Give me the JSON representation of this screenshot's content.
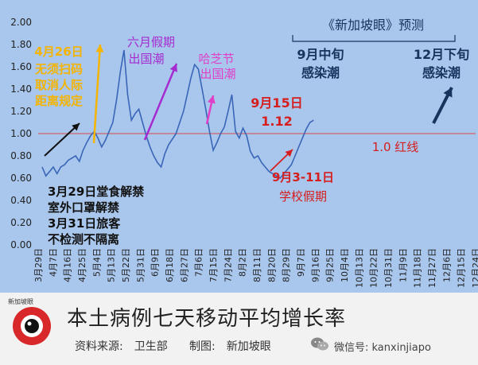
{
  "chart_data": {
    "type": "line",
    "title": "本土病例七天移动平均增长率",
    "x_ticks": [
      "3月29日",
      "4月7日",
      "4月16日",
      "4月25日",
      "5月4日",
      "5月13日",
      "5月22日",
      "5月31日",
      "6月9日",
      "6月18日",
      "6月27日",
      "7月6日",
      "7月15日",
      "7月24日",
      "8月2日",
      "8月11日",
      "8月20日",
      "8月29日",
      "9月7日",
      "9月16日",
      "9月25日",
      "10月4日",
      "10月13日",
      "10月22日",
      "10月31日",
      "11月9日",
      "11月18日",
      "11月27日",
      "12月6日",
      "12月15日",
      "12月24日"
    ],
    "y_ticks": [
      "0.00",
      "0.20",
      "0.40",
      "0.60",
      "0.80",
      "1.00",
      "1.20",
      "1.40",
      "1.60",
      "1.80",
      "2.00"
    ],
    "ylim": [
      0,
      2.0
    ],
    "series": [
      {
        "values": [
          0.7,
          0.62,
          0.66,
          0.7,
          0.64,
          0.7,
          0.72,
          0.76,
          0.78,
          0.8,
          0.75,
          0.85,
          0.92,
          0.98,
          1.02,
          0.96,
          0.88,
          0.94,
          1.02,
          1.1,
          1.3,
          1.55,
          1.75,
          1.35,
          1.12,
          1.18,
          1.22,
          1.1,
          0.98,
          0.88,
          0.8,
          0.74,
          0.7,
          0.82,
          0.9,
          0.95,
          1.0,
          1.1,
          1.2,
          1.35,
          1.5,
          1.62,
          1.58,
          1.4,
          1.22,
          1.02,
          0.85,
          0.92,
          1.0,
          1.06,
          1.2,
          1.35,
          1.02,
          0.96,
          1.05,
          0.98,
          0.84,
          0.78,
          0.8,
          0.74,
          0.7,
          0.66,
          0.64,
          0.62,
          0.6,
          0.64,
          0.68,
          0.72,
          0.8,
          0.88,
          0.96,
          1.04,
          1.1,
          1.12
        ]
      }
    ],
    "reference_line": {
      "value": 1.0,
      "label": "1.0 红线"
    },
    "annotations": [
      {
        "text": "4月26日"
      },
      {
        "text": "无须扫码"
      },
      {
        "text": "取消人际"
      },
      {
        "text": "距离规定"
      },
      {
        "text": "六月假期"
      },
      {
        "text": "出国潮"
      },
      {
        "text": "哈芝节"
      },
      {
        "text": "出国潮"
      },
      {
        "text": "3月29日堂食解禁"
      },
      {
        "text": "室外口罩解禁"
      },
      {
        "text": "3月31日旅客"
      },
      {
        "text": "不检测不隔离"
      },
      {
        "text": "9月15日"
      },
      {
        "text": "1.12"
      },
      {
        "text": "9月3-11日"
      },
      {
        "text": "学校假期"
      },
      {
        "text": "《新加坡眼》预测"
      },
      {
        "text": "9月中旬"
      },
      {
        "text": "感染潮"
      },
      {
        "text": "12月下旬"
      },
      {
        "text": "感染潮"
      }
    ],
    "colors": {
      "line": "#3a66b8",
      "red": "#d61e1e",
      "orange": "#f5b400",
      "purple": "#a52bd0",
      "magenta": "#e040c8",
      "navy": "#17345e",
      "black": "#111111"
    }
  },
  "footer": {
    "title": "本土病例七天移动平均增长率",
    "source": "资料来源:　卫生部",
    "maker": "制图:　新加坡眼",
    "wechat": "微信号: kanxinjiapo",
    "logo_label": "新加坡眼"
  }
}
